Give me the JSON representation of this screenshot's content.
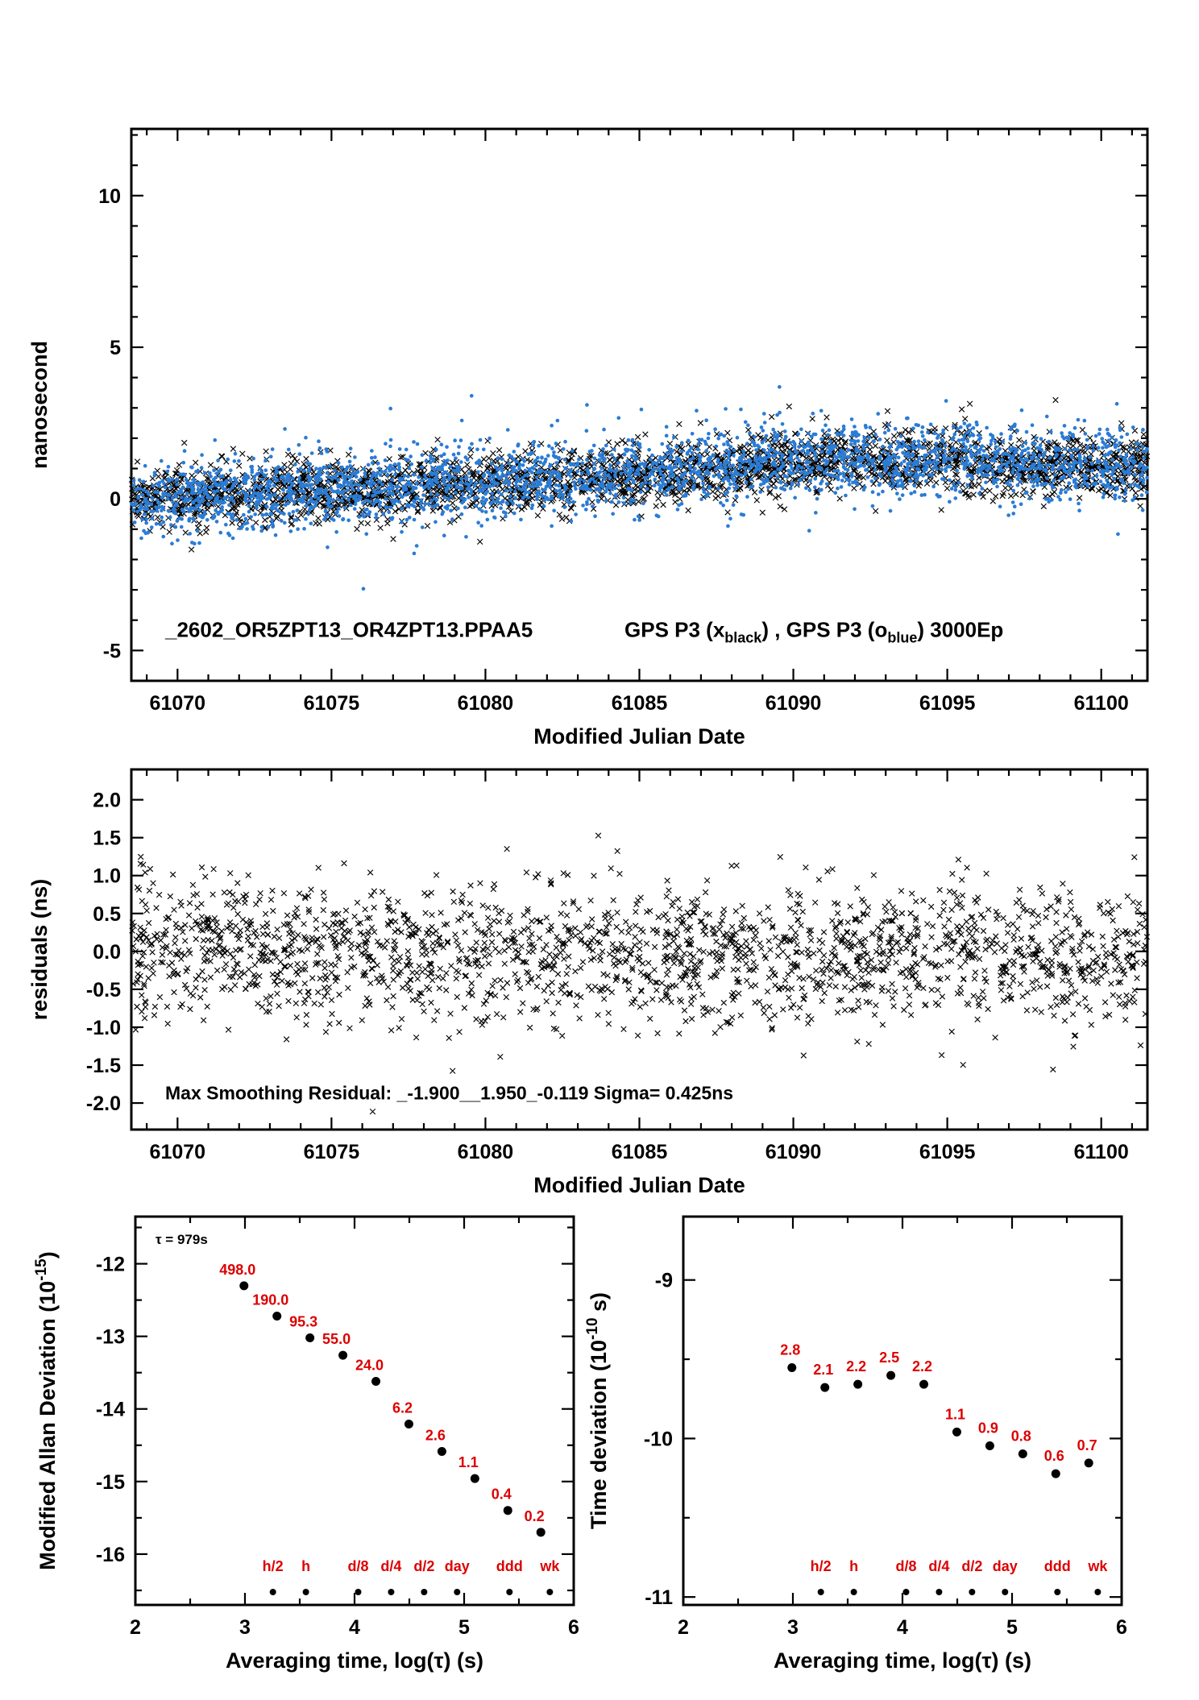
{
  "figure": {
    "background": "#ffffff",
    "colors": {
      "black": "#000000",
      "blue": "#2a7cd5",
      "red": "#dd0000"
    }
  },
  "chart_data": [
    {
      "id": "phase",
      "type": "scatter",
      "title": "_2602_OR5ZPT13_OR4ZPT13.PPAA5",
      "legend": {
        "pre": "GPS P3 (x",
        "sub1": "black",
        "mid": ") ,  GPS P3 (o",
        "sub2": "blue",
        "post": ")  3000Ep"
      },
      "xlabel": "Modified Julian Date",
      "ylabel": "nanosecond",
      "xlim": [
        61068.5,
        61101.5
      ],
      "ylim": [
        -6.0,
        12.2
      ],
      "xticks": [
        61070,
        61075,
        61080,
        61085,
        61090,
        61095,
        61100
      ],
      "yticks": [
        -5,
        0,
        5,
        10
      ],
      "xtick_decimals": 0,
      "ytick_decimals": 0,
      "x_minor_step": 1,
      "y_minor_step": 1,
      "series": [
        {
          "name": "GPS P3 x black",
          "marker": "x",
          "color": "#000000",
          "n": 2800,
          "seed": 42,
          "noise_sd": 0.5,
          "outlier_frac": 0.02,
          "outlier_sd": 0.8,
          "trend": [
            [
              61068.5,
              0.0
            ],
            [
              61072,
              0.15
            ],
            [
              61076,
              0.32
            ],
            [
              61080,
              0.5
            ],
            [
              61084,
              0.72
            ],
            [
              61088,
              1.0
            ],
            [
              61091,
              1.25
            ],
            [
              61094,
              1.3
            ],
            [
              61097,
              1.15
            ],
            [
              61101.5,
              1.05
            ]
          ]
        },
        {
          "name": "GPS P3 o blue",
          "marker": "dot",
          "color": "#2a7cd5",
          "n": 2800,
          "seed": 1337,
          "noise_sd": 0.6,
          "outlier_frac": 0.04,
          "outlier_sd": 0.9,
          "trend": [
            [
              61068.5,
              0.05
            ],
            [
              61072,
              0.2
            ],
            [
              61076,
              0.35
            ],
            [
              61080,
              0.55
            ],
            [
              61084,
              0.75
            ],
            [
              61088,
              1.05
            ],
            [
              61091,
              1.3
            ],
            [
              61094,
              1.35
            ],
            [
              61097,
              1.2
            ],
            [
              61101.5,
              1.1
            ]
          ]
        }
      ]
    },
    {
      "id": "residuals",
      "type": "scatter",
      "annotation": "Max Smoothing Residual: _-1.900__1.950_-0.119  Sigma= 0.425ns",
      "xlabel": "Modified Julian Date",
      "ylabel": "residuals (ns)",
      "xlim": [
        61068.5,
        61101.5
      ],
      "ylim": [
        -2.35,
        2.4
      ],
      "xticks": [
        61070,
        61075,
        61080,
        61085,
        61090,
        61095,
        61100
      ],
      "yticks": [
        -2.0,
        -1.5,
        -1.0,
        -0.5,
        0.0,
        0.5,
        1.0,
        1.5,
        2.0
      ],
      "xtick_decimals": 0,
      "ytick_decimals": 1,
      "x_minor_step": 1,
      "y_minor_step": 0,
      "series": [
        {
          "name": "residuals black",
          "marker": "x",
          "color": "#000000",
          "n": 2000,
          "seed": 7,
          "noise_sd": 0.45,
          "outlier_frac": 0.015,
          "outlier_sd": 0.7,
          "trend": [
            [
              61068.5,
              0.1
            ],
            [
              61075,
              0.0
            ],
            [
              61085,
              -0.05
            ],
            [
              61095,
              -0.05
            ],
            [
              61101.5,
              -0.15
            ]
          ]
        }
      ]
    },
    {
      "id": "mdev",
      "type": "scatter",
      "annotation": "τ = 979s",
      "xlabel": "Averaging time, log(τ) (s)",
      "ylabel": {
        "pre": "Modified Allan Deviation (10",
        "sup": "-15",
        "post": ")"
      },
      "xlim": [
        2,
        6
      ],
      "ylim": [
        -16.7,
        -11.35
      ],
      "xticks": [
        2,
        3,
        4,
        5,
        6
      ],
      "yticks": [
        -12,
        -13,
        -14,
        -15,
        -16
      ],
      "xtick_decimals": 0,
      "ytick_decimals": 0,
      "x_minor_step": 0.5,
      "y_minor_step": 0.5,
      "points": {
        "logtau": [
          2.991,
          3.292,
          3.593,
          3.894,
          4.195,
          4.496,
          4.797,
          5.098,
          5.399,
          5.7
        ],
        "log_values": [
          -12.303,
          -12.721,
          -13.021,
          -13.26,
          -13.62,
          -14.208,
          -14.585,
          -14.959,
          -15.398,
          -15.699
        ],
        "labels": [
          "498.0",
          "190.0",
          "95.3",
          "55.0",
          "24.0",
          "6.2",
          "2.6",
          "1.1",
          "0.4",
          "0.2"
        ]
      },
      "tau_marks": [
        {
          "label": "h/2",
          "logtau": 3.255
        },
        {
          "label": "h",
          "logtau": 3.556
        },
        {
          "label": "d/8",
          "logtau": 4.033
        },
        {
          "label": "d/4",
          "logtau": 4.334
        },
        {
          "label": "d/2",
          "logtau": 4.635
        },
        {
          "label": "day",
          "logtau": 4.936
        },
        {
          "label": "ddd",
          "logtau": 5.414
        },
        {
          "label": "wk",
          "logtau": 5.782
        }
      ]
    },
    {
      "id": "tdev",
      "type": "scatter",
      "xlabel": "Averaging time, log(τ) (s)",
      "ylabel": {
        "pre": "Time deviation (10",
        "sup": "-10",
        "post": " s)"
      },
      "xlim": [
        2,
        6
      ],
      "ylim": [
        -11.05,
        -8.6
      ],
      "xticks": [
        2,
        3,
        4,
        5,
        6
      ],
      "yticks": [
        -9,
        -10,
        -11
      ],
      "xtick_decimals": 0,
      "ytick_decimals": 0,
      "x_minor_step": 0.5,
      "y_minor_step": 0.5,
      "points": {
        "logtau": [
          2.991,
          3.292,
          3.593,
          3.894,
          4.195,
          4.496,
          4.797,
          5.098,
          5.399,
          5.7
        ],
        "log_values": [
          -9.553,
          -9.678,
          -9.658,
          -9.602,
          -9.658,
          -9.959,
          -10.046,
          -10.097,
          -10.222,
          -10.155
        ],
        "labels": [
          "2.8",
          "2.1",
          "2.2",
          "2.5",
          "2.2",
          "1.1",
          "0.9",
          "0.8",
          "0.6",
          "0.7"
        ]
      },
      "tau_marks": [
        {
          "label": "h/2",
          "logtau": 3.255
        },
        {
          "label": "h",
          "logtau": 3.556
        },
        {
          "label": "d/8",
          "logtau": 4.033
        },
        {
          "label": "d/4",
          "logtau": 4.334
        },
        {
          "label": "d/2",
          "logtau": 4.635
        },
        {
          "label": "day",
          "logtau": 4.936
        },
        {
          "label": "ddd",
          "logtau": 5.414
        },
        {
          "label": "wk",
          "logtau": 5.782
        }
      ]
    }
  ]
}
